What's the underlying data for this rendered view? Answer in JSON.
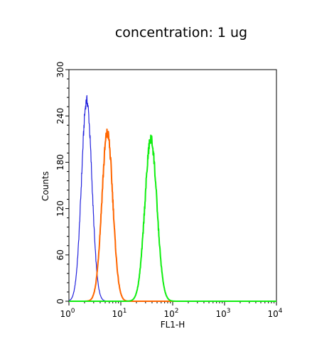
{
  "chart_data": {
    "type": "line",
    "title": "concentration:  1 ug",
    "xlabel": "FL1-H",
    "ylabel": "Counts",
    "x_scale": "log",
    "xlim": [
      1,
      10000
    ],
    "ylim": [
      0,
      300
    ],
    "x_ticks": [
      {
        "value": 1,
        "base": "10",
        "exp": "0"
      },
      {
        "value": 10,
        "base": "10",
        "exp": "1"
      },
      {
        "value": 100,
        "base": "10",
        "exp": "2"
      },
      {
        "value": 1000,
        "base": "10",
        "exp": "3"
      },
      {
        "value": 10000,
        "base": "10",
        "exp": "4"
      }
    ],
    "y_ticks": [
      "0",
      "60",
      "120",
      "180",
      "240",
      "300"
    ],
    "grid": false,
    "series": [
      {
        "color": "#2222dd",
        "peak_x": 2.2,
        "peak_y": 260,
        "sigma_log": 0.1
      },
      {
        "color": "#ff6600",
        "peak_x": 5.5,
        "peak_y": 218,
        "sigma_log": 0.105
      },
      {
        "color": "#11ee11",
        "peak_x": 38,
        "peak_y": 210,
        "sigma_log": 0.115
      }
    ]
  }
}
